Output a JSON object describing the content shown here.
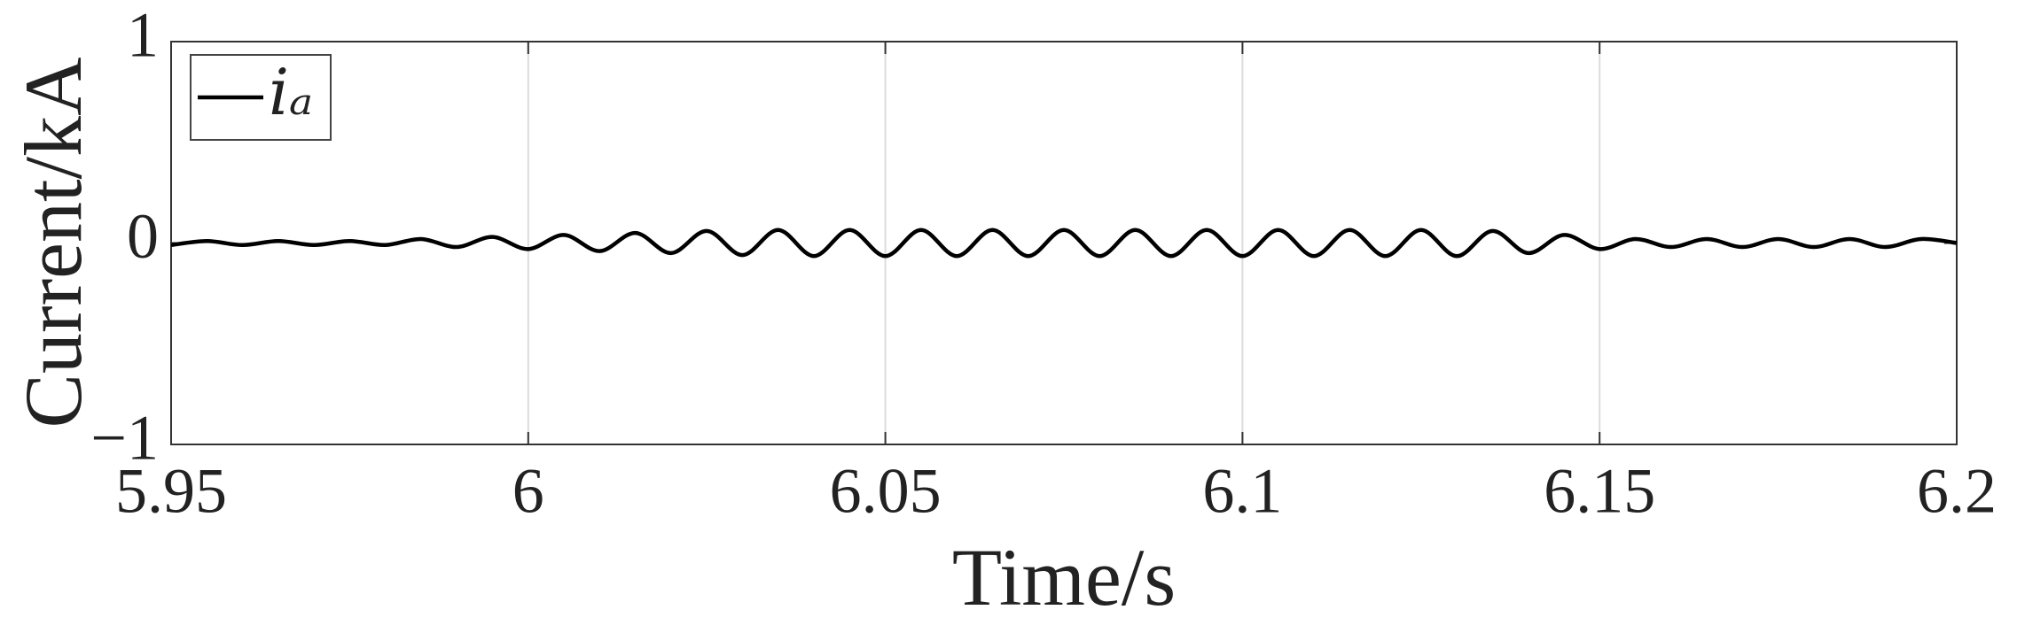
{
  "chart_data": {
    "type": "line",
    "xlabel": "Time/s",
    "ylabel": "Current/kA",
    "x": [
      5.95,
      5.955,
      5.96,
      5.965,
      5.97,
      5.975,
      5.98,
      5.985,
      5.99,
      5.995,
      6.0,
      6.005,
      6.01,
      6.015,
      6.02,
      6.025,
      6.03,
      6.035,
      6.04,
      6.045,
      6.05,
      6.055,
      6.06,
      6.065,
      6.07,
      6.075,
      6.08,
      6.085,
      6.09,
      6.095,
      6.1,
      6.105,
      6.11,
      6.115,
      6.12,
      6.125,
      6.13,
      6.135,
      6.14,
      6.145,
      6.15,
      6.155,
      6.16,
      6.165,
      6.17,
      6.175,
      6.18,
      6.185,
      6.19,
      6.195,
      6.2
    ],
    "series": [
      {
        "name": "iₐ",
        "color": "#000000",
        "values": [
          -0.01,
          0.01,
          -0.01,
          0.01,
          -0.01,
          0.01,
          -0.01,
          0.02,
          -0.02,
          0.03,
          -0.03,
          0.04,
          -0.04,
          0.05,
          -0.05,
          0.06,
          -0.06,
          0.065,
          -0.065,
          0.065,
          -0.065,
          0.065,
          -0.065,
          0.065,
          -0.065,
          0.065,
          -0.065,
          0.065,
          -0.065,
          0.065,
          -0.065,
          0.065,
          -0.065,
          0.065,
          -0.065,
          0.065,
          -0.065,
          0.06,
          -0.05,
          0.04,
          -0.03,
          0.02,
          -0.02,
          0.02,
          -0.02,
          0.02,
          -0.02,
          0.02,
          -0.02,
          0.02,
          0
        ]
      }
    ],
    "xlim": [
      5.95,
      6.2
    ],
    "xticks": [
      5.95,
      6,
      6.05,
      6.1,
      6.15,
      6.2
    ],
    "ylim": [
      -1,
      1
    ],
    "yticks": [
      {
        "value": -1,
        "label": "−1"
      },
      0,
      1
    ],
    "xgrid": true,
    "legend": "upper left"
  }
}
